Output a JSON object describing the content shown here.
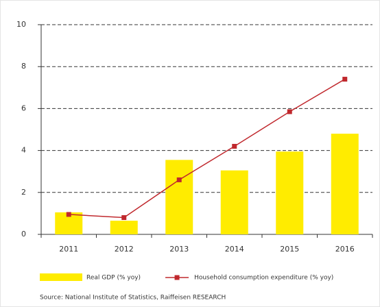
{
  "chart_data": {
    "type": "bar",
    "categories": [
      "2011",
      "2012",
      "2013",
      "2014",
      "2015",
      "2016"
    ],
    "series": [
      {
        "name": "Real GDP (% yoy)",
        "type": "bar",
        "color": "#ffec00",
        "values": [
          1.05,
          0.65,
          3.55,
          3.05,
          3.95,
          4.8
        ]
      },
      {
        "name": "Household consumption expenditure (% yoy)",
        "type": "line",
        "color": "#c0282d",
        "values": [
          0.95,
          0.8,
          2.6,
          4.2,
          5.85,
          7.4
        ]
      }
    ],
    "ylim": [
      0,
      10
    ],
    "yticks": [
      0,
      2,
      4,
      6,
      8,
      10
    ],
    "grid": true,
    "legend": "bottom",
    "source": "Source: National Institute of Statistics, Raiffeisen RESEARCH"
  }
}
